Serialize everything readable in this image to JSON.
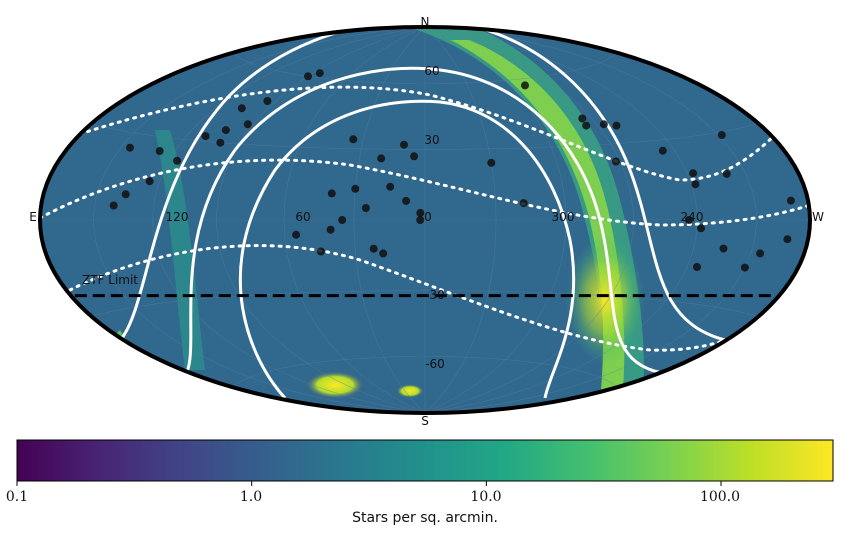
{
  "chart_data": {
    "type": "sky-map (hammer projection) with scatter overlay",
    "labels": {
      "north": "N",
      "south": "S",
      "east": "E",
      "west": "W"
    },
    "ra_ticks": [
      "120",
      "60",
      "0",
      "300",
      "240"
    ],
    "dec_ticks": [
      "60",
      "30",
      "0",
      "-30",
      "-60"
    ],
    "annotation": "ZTF Limit",
    "ztf_limit_dec": -30,
    "colorbar": {
      "label": "Stars per sq. arcmin.",
      "ticks": [
        "0.1",
        "1.0",
        "10.0",
        "100.0"
      ],
      "range": [
        0.1,
        300
      ],
      "scale": "log",
      "colormap": "viridis"
    },
    "grid": true,
    "points": [
      {
        "ra": 93,
        "dec": 38
      },
      {
        "ra": 102,
        "dec": 35
      },
      {
        "ra": 110,
        "dec": 32
      },
      {
        "ra": 105,
        "dec": 44
      },
      {
        "ra": 95,
        "dec": 48
      },
      {
        "ra": 100,
        "dec": 30
      },
      {
        "ra": 116,
        "dec": 22
      },
      {
        "ra": 128,
        "dec": 25
      },
      {
        "ra": 145,
        "dec": 25
      },
      {
        "ra": 140,
        "dec": 5
      },
      {
        "ra": 135,
        "dec": 9
      },
      {
        "ra": 125,
        "dec": 14
      },
      {
        "ra": 90,
        "dec": 60
      },
      {
        "ra": 85,
        "dec": 62
      },
      {
        "ra": 35,
        "dec": 34
      },
      {
        "ra": 10,
        "dec": 32
      },
      {
        "ra": 5,
        "dec": 27
      },
      {
        "ra": 20,
        "dec": 26
      },
      {
        "ra": 15,
        "dec": 14
      },
      {
        "ra": 30,
        "dec": 13
      },
      {
        "ra": 40,
        "dec": 11
      },
      {
        "ra": 8,
        "dec": 8
      },
      {
        "ra": 2,
        "dec": 3
      },
      {
        "ra": 25,
        "dec": 5
      },
      {
        "ra": 35,
        "dec": 0
      },
      {
        "ra": 40,
        "dec": -4
      },
      {
        "ra": 55,
        "dec": -6
      },
      {
        "ra": 45,
        "dec": -13
      },
      {
        "ra": 22,
        "dec": -12
      },
      {
        "ra": 18,
        "dec": -14
      },
      {
        "ra": 2,
        "dec": 0
      },
      {
        "ra": 330,
        "dec": 24
      },
      {
        "ra": 318,
        "dec": 7
      },
      {
        "ra": 290,
        "dec": 57
      },
      {
        "ra": 275,
        "dec": 41
      },
      {
        "ra": 276,
        "dec": 38
      },
      {
        "ra": 266,
        "dec": 38
      },
      {
        "ra": 260,
        "dec": 37
      },
      {
        "ra": 272,
        "dec": 23
      },
      {
        "ra": 246,
        "dec": 26
      },
      {
        "ra": 237,
        "dec": 17
      },
      {
        "ra": 238,
        "dec": 13
      },
      {
        "ra": 244,
        "dec": 0
      },
      {
        "ra": 238,
        "dec": -3
      },
      {
        "ra": 220,
        "dec": 16
      },
      {
        "ra": 208,
        "dec": 29
      },
      {
        "ra": 190,
        "dec": 6
      },
      {
        "ra": 192,
        "dec": -6
      },
      {
        "ra": 205,
        "dec": -11
      },
      {
        "ra": 225,
        "dec": -10
      },
      {
        "ra": 210,
        "dec": -16
      },
      {
        "ra": 235,
        "dec": -17
      }
    ]
  }
}
